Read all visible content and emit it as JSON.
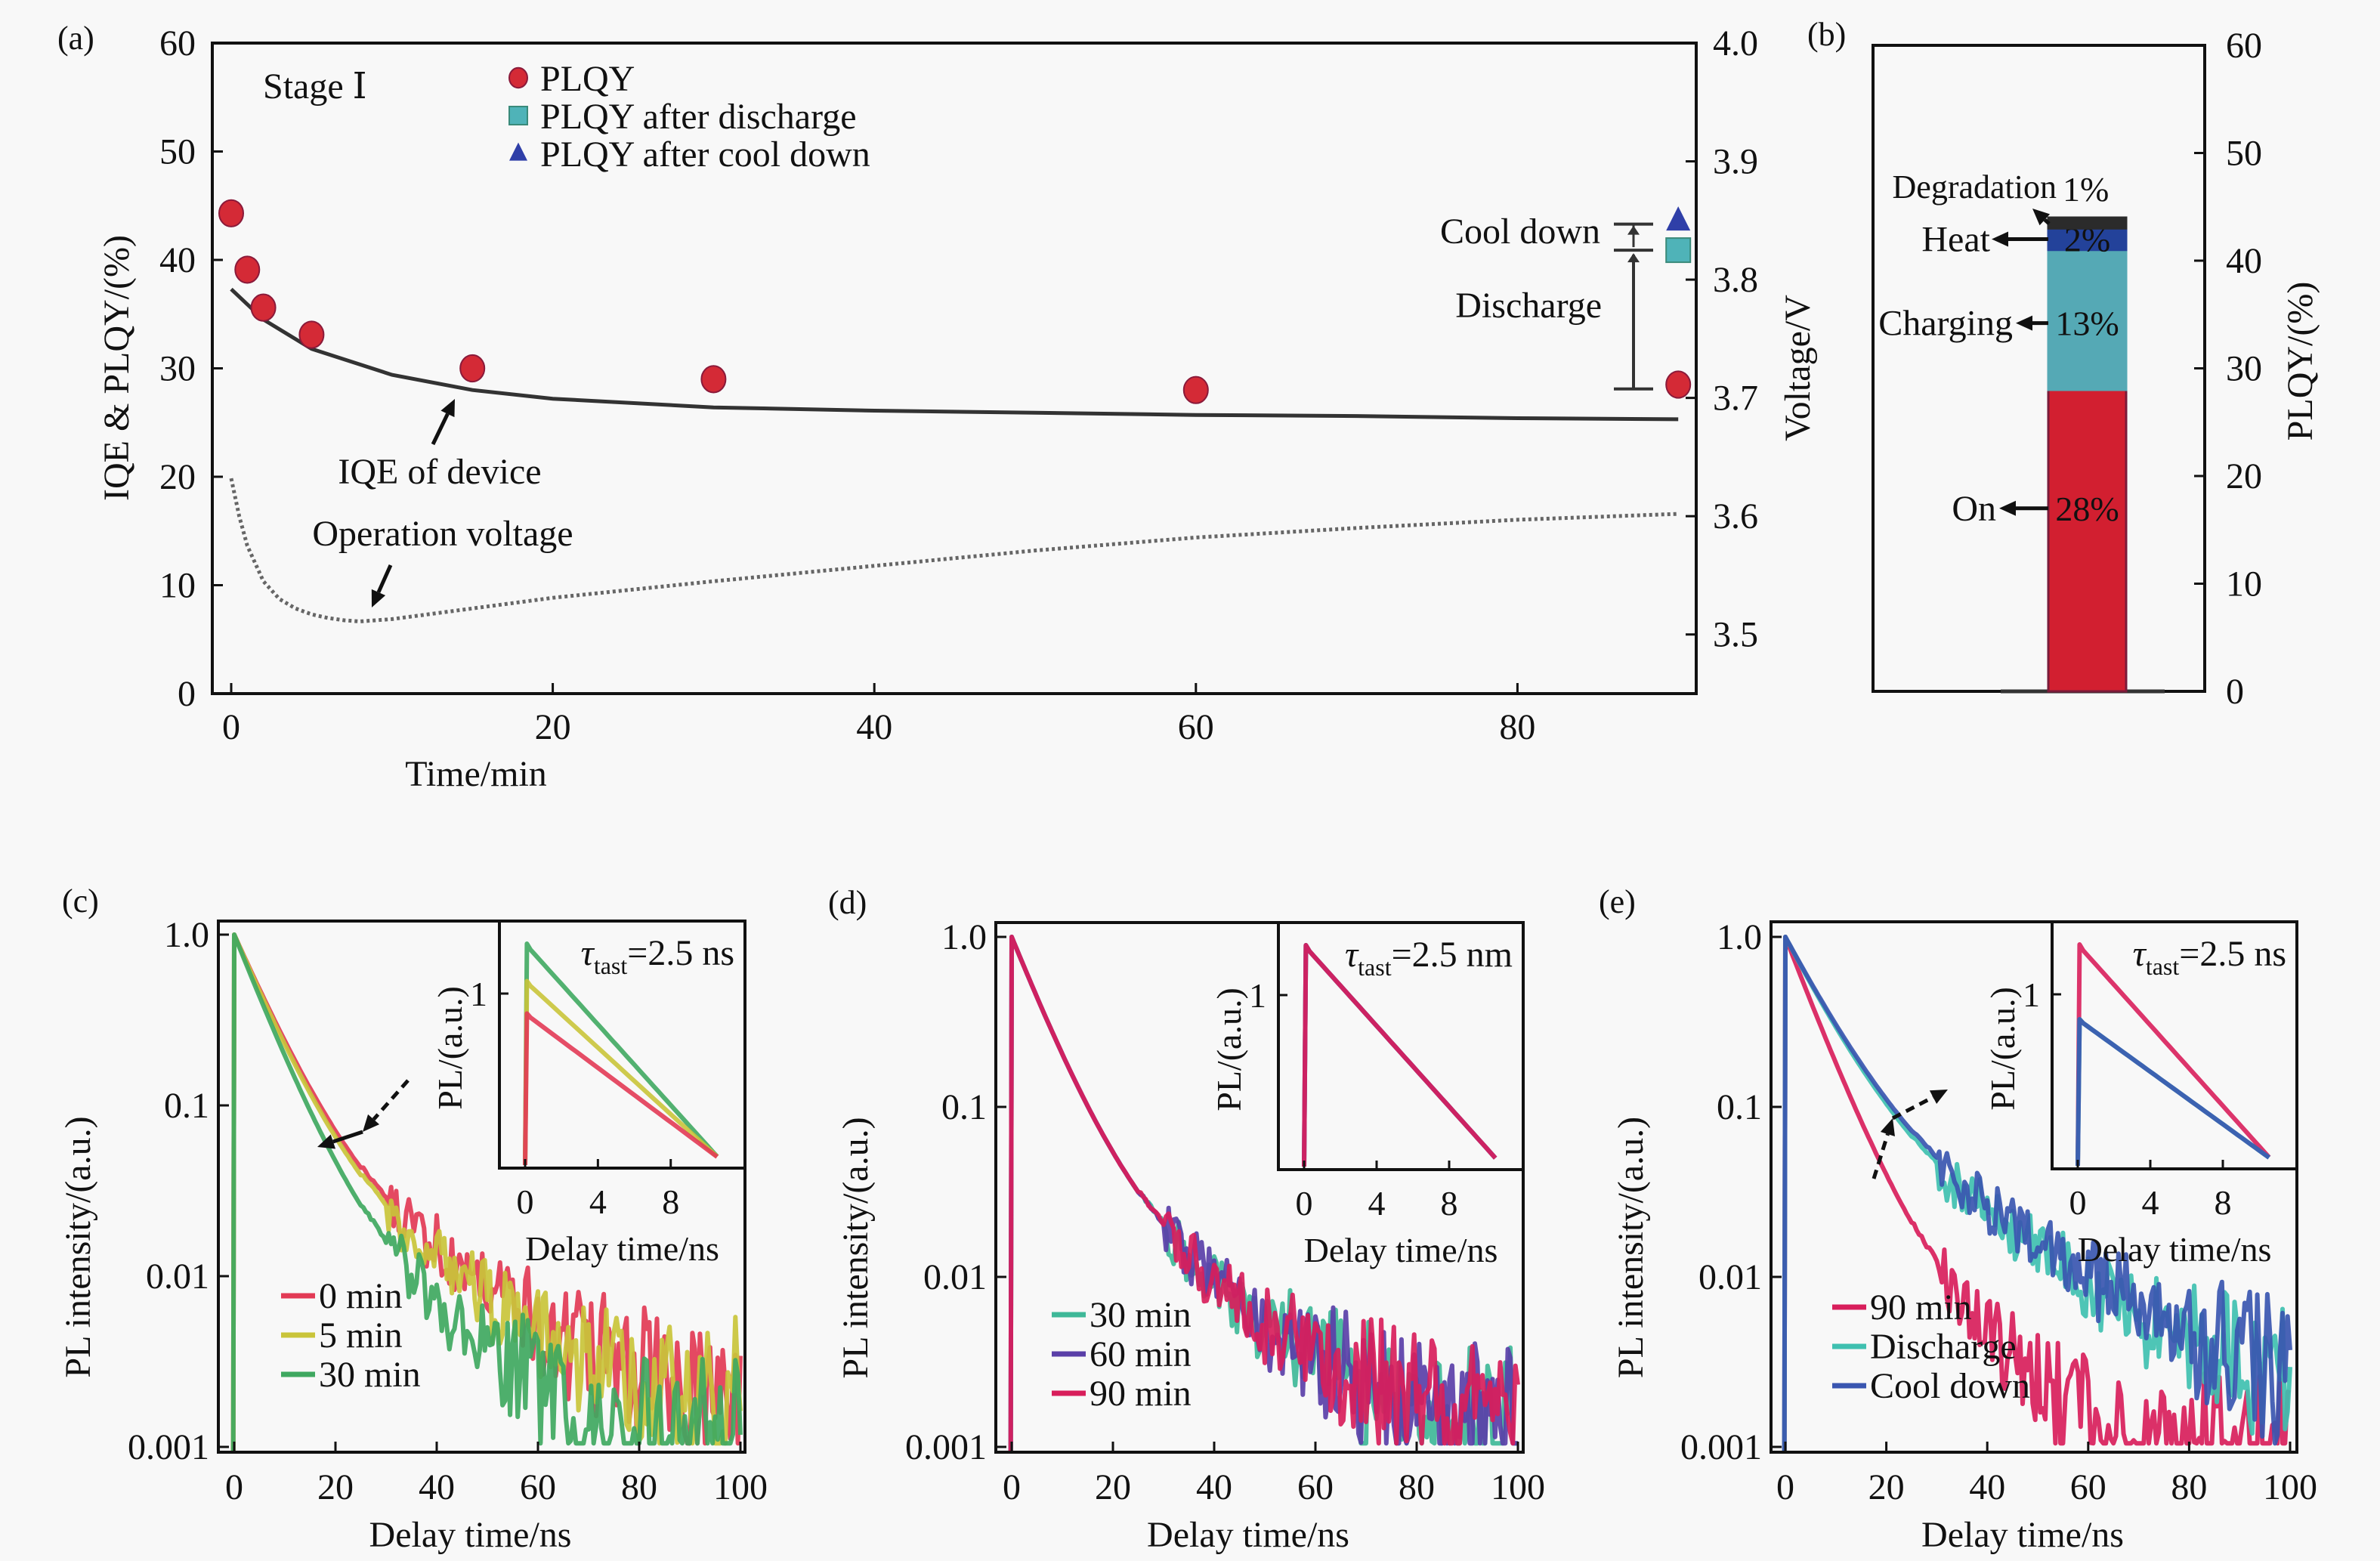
{
  "chart_data": [
    {
      "panel": "a",
      "type": "scatter",
      "panel_label": "(a)",
      "xlabel": "Time/min",
      "ylabel": "IQE & PLQY/(%)",
      "y2label": "Voltage/V",
      "xlim": [
        -1,
        91
      ],
      "ylim": [
        0,
        60
      ],
      "y2lim": [
        3.45,
        4.0
      ],
      "xticks": [
        0,
        20,
        40,
        60,
        80
      ],
      "yticks": [
        0,
        10,
        20,
        30,
        40,
        50,
        60
      ],
      "y2ticks": [
        3.5,
        3.6,
        3.7,
        3.8,
        3.9,
        4.0
      ],
      "y2tick_labels": [
        "3.5",
        "3.6",
        "3.7",
        "3.8",
        "3.9",
        "4.0"
      ],
      "stage_label": "Stage Ⅰ",
      "legend": [
        {
          "label": "PLQY",
          "marker": "circle",
          "color": "#d42a36"
        },
        {
          "label": "PLQY after discharge",
          "marker": "square",
          "color": "#4fb3b8"
        },
        {
          "label": "PLQY after cool down",
          "marker": "triangle",
          "color": "#2f3fa8"
        }
      ],
      "series": [
        {
          "name": "PLQY",
          "marker": "circle",
          "color": "#d42a36",
          "x": [
            0,
            1,
            2,
            5,
            15,
            30,
            60,
            90
          ],
          "y": [
            44.3,
            39.1,
            35.6,
            33.1,
            30.0,
            29.0,
            28.0,
            28.5
          ]
        },
        {
          "name": "PLQY after discharge",
          "marker": "square",
          "color": "#4fb3b8",
          "x": [
            90
          ],
          "y": [
            40.9
          ]
        },
        {
          "name": "PLQY after cool down",
          "marker": "triangle",
          "color": "#2f3fa8",
          "x": [
            90
          ],
          "y": [
            43.6
          ]
        },
        {
          "name": "IQE of device",
          "type": "line",
          "color": "#333333",
          "x": [
            0,
            2,
            5,
            10,
            15,
            20,
            30,
            40,
            50,
            60,
            70,
            80,
            90
          ],
          "y": [
            37.3,
            34.5,
            31.8,
            29.4,
            28.0,
            27.2,
            26.4,
            26.1,
            25.9,
            25.7,
            25.6,
            25.4,
            25.3
          ]
        },
        {
          "name": "Operation voltage",
          "type": "line",
          "style": "dotted",
          "axis": "right",
          "color": "#666666",
          "x": [
            0,
            0.5,
            1,
            2,
            3,
            4,
            5,
            6,
            7,
            8,
            10,
            15,
            20,
            30,
            40,
            50,
            60,
            70,
            80,
            90
          ],
          "y": [
            3.632,
            3.6,
            3.575,
            3.545,
            3.53,
            3.522,
            3.517,
            3.514,
            3.512,
            3.511,
            3.513,
            3.522,
            3.531,
            3.545,
            3.558,
            3.571,
            3.582,
            3.59,
            3.597,
            3.602
          ]
        }
      ],
      "annotations": [
        {
          "text": "IQE of device"
        },
        {
          "text": "Operation voltage"
        },
        {
          "text": "Cool down",
          "from": 40.9,
          "to": 43.3
        },
        {
          "text": "Discharge",
          "from": 28.1,
          "to": 40.9
        }
      ]
    },
    {
      "panel": "b",
      "type": "bar",
      "panel_label": "(b)",
      "ylabel": "PLQY/(%)",
      "left_label": "Voltage/V",
      "ylim": [
        0,
        60
      ],
      "yticks": [
        0,
        10,
        20,
        30,
        40,
        50,
        60
      ],
      "stack": [
        {
          "name": "On",
          "value": 28,
          "label": "28%",
          "color": "#d21f30",
          "text_color": "#f3e6c8"
        },
        {
          "name": "Charging",
          "value": 13,
          "label": "13%",
          "color": "#55a9b5",
          "text_color": "#b8f5f0"
        },
        {
          "name": "Heat",
          "value": 2,
          "label": "2%",
          "color": "#23429a",
          "text_color": "#e8f4ff"
        },
        {
          "name": "Degradation",
          "value": 1,
          "label": "1%",
          "color": "#2b2b2b",
          "text_color": "#111111"
        }
      ]
    },
    {
      "panel": "c",
      "type": "line",
      "panel_label": "(c)",
      "xlabel": "Delay time/ns",
      "ylabel": "PL intensity/(a.u.)",
      "yscale": "log",
      "xlim": [
        -3,
        101
      ],
      "ylim": [
        0.001,
        1.0
      ],
      "xticks": [
        0,
        20,
        40,
        60,
        80,
        100
      ],
      "yticks": [
        0.001,
        0.01,
        0.1,
        1.0
      ],
      "ytick_labels": [
        "0.001",
        "0.01",
        "0.1",
        "1.0"
      ],
      "series": [
        {
          "name": "0 min",
          "color": "#e23a55",
          "tau1": 6.2,
          "a1": 0.9,
          "tau2": 19,
          "a2": 0.1,
          "floor": 0.0026
        },
        {
          "name": "5 min",
          "color": "#c9c43a",
          "tau1": 6.0,
          "a1": 0.9,
          "tau2": 18,
          "a2": 0.1,
          "floor": 0.0024
        },
        {
          "name": "30 min",
          "color": "#3fa860",
          "tau1": 5.6,
          "a1": 0.92,
          "tau2": 15,
          "a2": 0.08,
          "floor": 0.0017
        }
      ],
      "inset": {
        "xlabel": "Delay time/ns",
        "ylabel": "PL/(a.u.)",
        "xticks": [
          0,
          4,
          8
        ],
        "ytick": "1",
        "tau_symbol": "τ",
        "tau_sub": "tast",
        "tau_text": "=2.5 ns",
        "peaks": [
          1.0,
          0.85,
          0.72
        ],
        "order": [
          "30 min",
          "5 min",
          "0 min"
        ]
      }
    },
    {
      "panel": "d",
      "type": "line",
      "panel_label": "(d)",
      "xlabel": "Delay time/ns",
      "ylabel": "PL intensity/(a.u.)",
      "yscale": "log",
      "xlim": [
        -3,
        101
      ],
      "ylim": [
        0.001,
        1.0
      ],
      "xticks": [
        0,
        20,
        40,
        60,
        80,
        100
      ],
      "yticks": [
        0.001,
        0.01,
        0.1,
        1.0
      ],
      "ytick_labels": [
        "0.001",
        "0.01",
        "0.1",
        "1.0"
      ],
      "series": [
        {
          "name": "30 min",
          "color": "#3fb898",
          "tau1": 5.6,
          "a1": 0.9,
          "tau2": 16,
          "a2": 0.1,
          "floor": 0.0018
        },
        {
          "name": "60 min",
          "color": "#5a3fa8",
          "tau1": 5.6,
          "a1": 0.9,
          "tau2": 16,
          "a2": 0.1,
          "floor": 0.0018
        },
        {
          "name": "90 min",
          "color": "#d81e5b",
          "tau1": 5.6,
          "a1": 0.9,
          "tau2": 16,
          "a2": 0.1,
          "floor": 0.0018
        }
      ],
      "inset": {
        "xlabel": "Delay time/ns",
        "ylabel": "PL/(a.u.)",
        "xticks": [
          0,
          4,
          8
        ],
        "ytick": "1",
        "tau_symbol": "τ",
        "tau_sub": "tast",
        "tau_text": "=2.5 nm",
        "peaks": [
          1.0,
          1.0,
          1.0
        ],
        "order": [
          "30 min",
          "60 min",
          "90 min"
        ]
      }
    },
    {
      "panel": "e",
      "type": "line",
      "panel_label": "(e)",
      "xlabel": "Delay time/ns",
      "ylabel": "PL intensity/(a.u.)",
      "yscale": "log",
      "xlim": [
        -3,
        101
      ],
      "ylim": [
        0.001,
        1.0
      ],
      "xticks": [
        0,
        20,
        40,
        60,
        80,
        100
      ],
      "yticks": [
        0.001,
        0.01,
        0.1,
        1.0
      ],
      "ytick_labels": [
        "0.001",
        "0.01",
        "0.1",
        "1.0"
      ],
      "series": [
        {
          "name": "90 min",
          "color": "#d81e5b",
          "tau1": 5.4,
          "a1": 0.92,
          "tau2": 13,
          "a2": 0.08,
          "floor": 0.0014
        },
        {
          "name": "Discharge",
          "color": "#3fc0b0",
          "tau1": 7.0,
          "a1": 0.85,
          "tau2": 20,
          "a2": 0.15,
          "floor": 0.0025
        },
        {
          "name": "Cool down",
          "color": "#3a56b0",
          "tau1": 7.2,
          "a1": 0.85,
          "tau2": 21,
          "a2": 0.15,
          "floor": 0.0026
        }
      ],
      "inset": {
        "xlabel": "Delay time/ns",
        "ylabel": "PL/(a.u.)",
        "xticks": [
          0,
          4,
          8
        ],
        "ytick": "1",
        "tau_symbol": "τ",
        "tau_sub": "tast",
        "tau_text": "=2.5 ns",
        "peaks": [
          1.0,
          0.7,
          0.7
        ],
        "order": [
          "90 min",
          "Discharge",
          "Cool down"
        ]
      }
    }
  ]
}
